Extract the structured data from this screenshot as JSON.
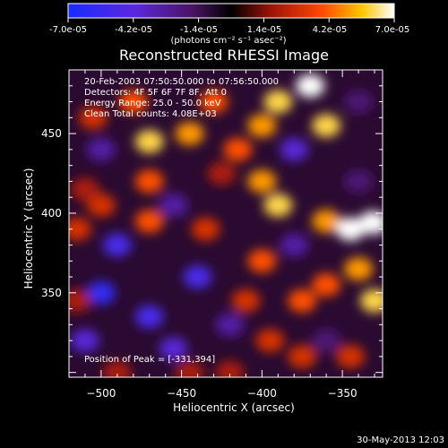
{
  "colorbar": {
    "ticks": [
      "-7.0e-05",
      "-4.2e-05",
      "-1.4e-05",
      "1.4e-05",
      "4.2e-05",
      "7.0e-05"
    ],
    "unit_label": "(photons cm⁻² s⁻¹ asec⁻²)",
    "range": [
      -7e-05,
      7e-05
    ]
  },
  "info": {
    "time_range": "20-Feb-2003 07:50:50.000 to 07:56:50.000",
    "detectors": "Detectors: 4F 5F 6F 7F 8F, Att 0",
    "energy": "Energy Range: 25.0 - 50.0 keV",
    "clean": "Clean    Total counts: 4.08E+03",
    "peak": "Position of Peak = [-331,394]"
  },
  "footer": {
    "date": "30-May-2013 12:03"
  },
  "chart_data": {
    "type": "heatmap",
    "title": "Reconstructed RHESSI Image",
    "xlabel": "Heliocentric X (arcsec)",
    "ylabel": "Heliocentric Y (arcsec)",
    "xlim": [
      -520,
      -325
    ],
    "ylim": [
      297,
      490
    ],
    "xticks": [
      -500,
      -450,
      -400,
      -350
    ],
    "yticks": [
      350,
      400,
      450
    ],
    "color_range": [
      -7e-05,
      7e-05
    ],
    "colormap": "blue-black-red-yellow-white",
    "peak": [
      -331,
      394
    ],
    "grid": false,
    "features": [
      {
        "x": -500,
        "y": 350,
        "value": -6e-05
      },
      {
        "x": -470,
        "y": 335,
        "value": -5e-05
      },
      {
        "x": -490,
        "y": 380,
        "value": -5e-05
      },
      {
        "x": -440,
        "y": 360,
        "value": -5e-05
      },
      {
        "x": -455,
        "y": 315,
        "value": -4e-05
      },
      {
        "x": -510,
        "y": 320,
        "value": -4e-05
      },
      {
        "x": -500,
        "y": 440,
        "value": -3e-05
      },
      {
        "x": -380,
        "y": 440,
        "value": -4e-05
      },
      {
        "x": -420,
        "y": 330,
        "value": -3e-05
      },
      {
        "x": -380,
        "y": 380,
        "value": -3e-05
      },
      {
        "x": -360,
        "y": 320,
        "value": -2e-05
      },
      {
        "x": -455,
        "y": 405,
        "value": -3e-05
      },
      {
        "x": -340,
        "y": 470,
        "value": -2e-05
      },
      {
        "x": -340,
        "y": 420,
        "value": -2e-05
      },
      {
        "x": -480,
        "y": 470,
        "value": 4e-05
      },
      {
        "x": -505,
        "y": 460,
        "value": 3e-05
      },
      {
        "x": -470,
        "y": 445,
        "value": 6e-05
      },
      {
        "x": -470,
        "y": 395,
        "value": 4e-05
      },
      {
        "x": -470,
        "y": 420,
        "value": 4e-05
      },
      {
        "x": -445,
        "y": 450,
        "value": 5e-05
      },
      {
        "x": -430,
        "y": 470,
        "value": 4e-05
      },
      {
        "x": -390,
        "y": 470,
        "value": 6e-05
      },
      {
        "x": -370,
        "y": 480,
        "value": 7e-05
      },
      {
        "x": -360,
        "y": 455,
        "value": 6e-05
      },
      {
        "x": -400,
        "y": 455,
        "value": 5e-05
      },
      {
        "x": -415,
        "y": 440,
        "value": 4e-05
      },
      {
        "x": -400,
        "y": 420,
        "value": 5e-05
      },
      {
        "x": -390,
        "y": 405,
        "value": 6e-05
      },
      {
        "x": -360,
        "y": 395,
        "value": 5e-05
      },
      {
        "x": -345,
        "y": 390,
        "value": 7e-05
      },
      {
        "x": -331,
        "y": 394,
        "value": 7e-05
      },
      {
        "x": -340,
        "y": 365,
        "value": 5e-05
      },
      {
        "x": -330,
        "y": 345,
        "value": 6e-05
      },
      {
        "x": -360,
        "y": 355,
        "value": 4e-05
      },
      {
        "x": -375,
        "y": 345,
        "value": 4e-05
      },
      {
        "x": -400,
        "y": 370,
        "value": 4e-05
      },
      {
        "x": -410,
        "y": 345,
        "value": 3e-05
      },
      {
        "x": -395,
        "y": 320,
        "value": 3e-05
      },
      {
        "x": -375,
        "y": 310,
        "value": 3e-05
      },
      {
        "x": -345,
        "y": 310,
        "value": 3e-05
      },
      {
        "x": -500,
        "y": 405,
        "value": 3e-05
      },
      {
        "x": -515,
        "y": 390,
        "value": 3e-05
      },
      {
        "x": -510,
        "y": 415,
        "value": 2e-05
      },
      {
        "x": -515,
        "y": 345,
        "value": 2e-05
      },
      {
        "x": -435,
        "y": 390,
        "value": 3e-05
      },
      {
        "x": -445,
        "y": 300,
        "value": 2e-05
      },
      {
        "x": -425,
        "y": 425,
        "value": 2e-05
      },
      {
        "x": -490,
        "y": 300,
        "value": 2e-05
      },
      {
        "x": -420,
        "y": 300,
        "value": 2e-05
      }
    ]
  }
}
